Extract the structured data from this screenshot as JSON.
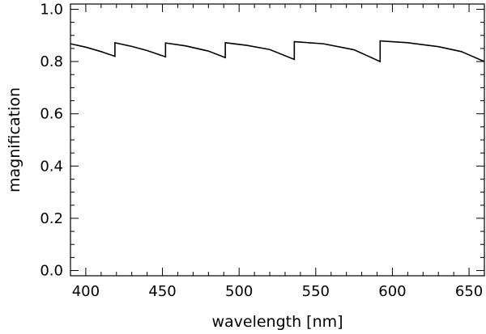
{
  "chart_data": {
    "type": "line",
    "title": "",
    "xlabel": "wavelength [nm]",
    "ylabel": "magnification",
    "xlim": [
      390,
      660
    ],
    "ylim": [
      -0.02,
      1.02
    ],
    "grid": false,
    "legend": "none",
    "x_ticks": [
      400,
      450,
      500,
      550,
      600,
      650
    ],
    "x_tick_labels": [
      "400",
      "450",
      "500",
      "550",
      "600",
      "650"
    ],
    "y_ticks": [
      0.0,
      0.2,
      0.4,
      0.6,
      0.8,
      1.0
    ],
    "y_tick_labels": [
      "0.0",
      "0.2",
      "0.4",
      "0.6",
      "0.8",
      "1.0"
    ],
    "x_minor_step": 10,
    "y_minor_step": 0.05,
    "series": [
      {
        "color": "#000000",
        "x": [
          390,
          400,
          410,
          419,
          419,
          430,
          440,
          452,
          452,
          465,
          480,
          491,
          491,
          505,
          520,
          536,
          536,
          555,
          575,
          592,
          592,
          610,
          630,
          645,
          660
        ],
        "y": [
          0.868,
          0.855,
          0.838,
          0.82,
          0.872,
          0.858,
          0.842,
          0.818,
          0.871,
          0.86,
          0.84,
          0.815,
          0.872,
          0.862,
          0.846,
          0.808,
          0.876,
          0.868,
          0.845,
          0.8,
          0.879,
          0.872,
          0.857,
          0.838,
          0.8
        ]
      }
    ]
  }
}
